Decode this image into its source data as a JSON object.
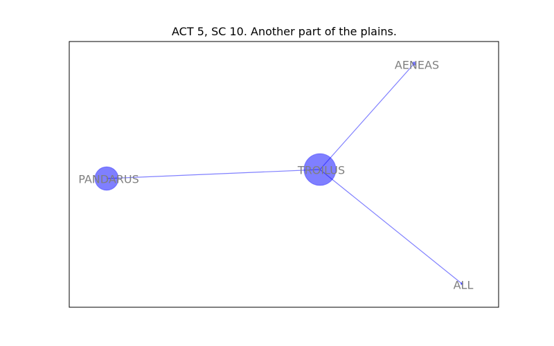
{
  "title": "ACT 5, SC 10. Another part of the plains.",
  "colors": {
    "node_fill": "#0000ff",
    "node_opacity": 0.5,
    "edge": "#0000ff",
    "edge_opacity": 0.5,
    "label": "#7f7f7f",
    "frame": "#000000",
    "background": "#ffffff"
  },
  "nodes": [
    {
      "id": "TROILUS",
      "label": "TROILUS",
      "weight": 3
    },
    {
      "id": "PANDARUS",
      "label": "PANDARUS",
      "weight": 1.5
    },
    {
      "id": "AENEAS",
      "label": "AENEAS",
      "weight": 0.1
    },
    {
      "id": "ALL",
      "label": "ALL",
      "weight": 0.05
    }
  ],
  "edges": [
    {
      "source": "TROILUS",
      "target": "PANDARUS"
    },
    {
      "source": "TROILUS",
      "target": "AENEAS"
    },
    {
      "source": "TROILUS",
      "target": "ALL"
    }
  ]
}
